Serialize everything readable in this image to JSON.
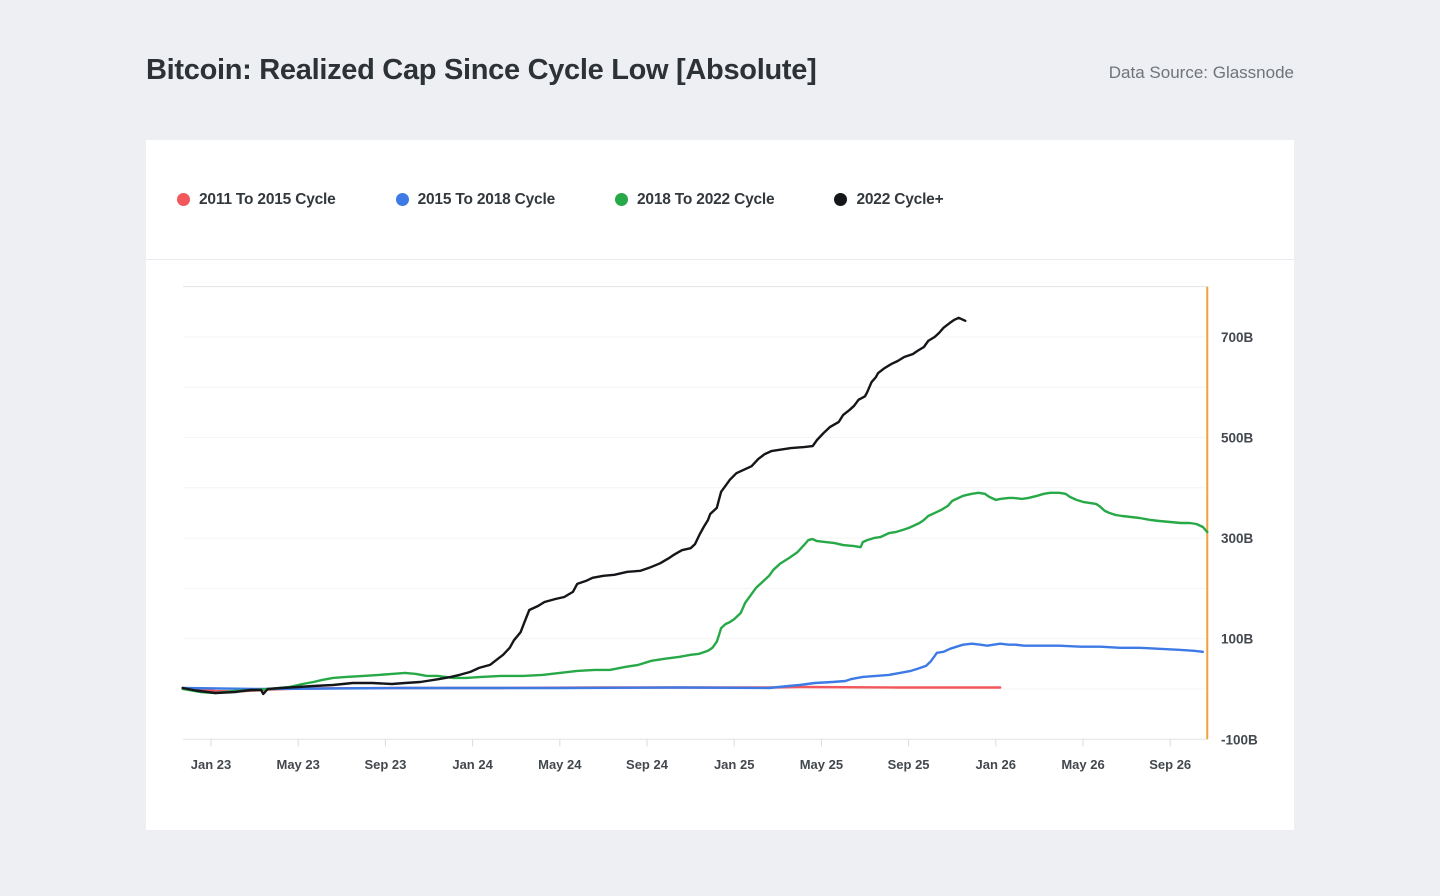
{
  "header": {
    "title": "Bitcoin: Realized Cap Since Cycle Low [Absolute]",
    "data_source": "Data Source: Glassnode"
  },
  "legend": [
    {
      "label": "2011 To 2015 Cycle",
      "color": "#F2575C"
    },
    {
      "label": "2015 To 2018 Cycle",
      "color": "#3D7AE5"
    },
    {
      "label": "2018 To 2022 Cycle",
      "color": "#27A948"
    },
    {
      "label": "2022 Cycle+",
      "color": "#141619"
    }
  ],
  "chart_data": {
    "type": "line",
    "title": "Bitcoin: Realized Cap Since Cycle Low [Absolute]",
    "xlabel": "",
    "ylabel": "",
    "unit": "billions USD",
    "grid": "horizontal",
    "legend_position": "top",
    "ylim": [
      -100,
      800
    ],
    "gridline_step": 100,
    "x_axis": {
      "note": "month 0 = Jan 23, 1 unit = 1 month",
      "ticks": [
        {
          "month": 0,
          "label": "Jan 23"
        },
        {
          "month": 4,
          "label": "May 23"
        },
        {
          "month": 8,
          "label": "Sep 23"
        },
        {
          "month": 12,
          "label": "Jan 24"
        },
        {
          "month": 16,
          "label": "May 24"
        },
        {
          "month": 20,
          "label": "Sep 24"
        },
        {
          "month": 24,
          "label": "Jan 25"
        },
        {
          "month": 28,
          "label": "May 25"
        },
        {
          "month": 32,
          "label": "Sep 25"
        },
        {
          "month": 36,
          "label": "Jan 26"
        },
        {
          "month": 40,
          "label": "May 26"
        },
        {
          "month": 44,
          "label": "Sep 26"
        }
      ]
    },
    "y_axis": {
      "side": "right",
      "ticks": [
        {
          "value": 700,
          "label": "700B"
        },
        {
          "value": 500,
          "label": "500B"
        },
        {
          "value": 300,
          "label": "300B"
        },
        {
          "value": 100,
          "label": "100B"
        },
        {
          "value": -100,
          "label": "-100B"
        }
      ]
    },
    "annotations": {
      "vertical_line": {
        "month": 45.7,
        "color": "#F2A13D"
      }
    },
    "series": [
      {
        "name": "2011 To 2015 Cycle",
        "color": "#F2575C",
        "points": [
          [
            -1.3,
            2
          ],
          [
            0.2,
            -4
          ],
          [
            1.1,
            -5
          ],
          [
            2,
            -3
          ],
          [
            2.7,
            -1
          ],
          [
            4.1,
            1
          ],
          [
            8.7,
            2
          ],
          [
            13.3,
            2
          ],
          [
            17.8,
            3
          ],
          [
            22.4,
            3
          ],
          [
            25.6,
            3
          ],
          [
            27,
            4
          ],
          [
            31.6,
            3
          ],
          [
            33.9,
            3
          ],
          [
            36.2,
            3
          ]
        ]
      },
      {
        "name": "2015 To 2018 Cycle",
        "color": "#3D7AE5",
        "points": [
          [
            -1.3,
            2
          ],
          [
            2.2,
            0
          ],
          [
            8.7,
            2
          ],
          [
            16,
            2
          ],
          [
            21.5,
            3
          ],
          [
            25.6,
            2
          ],
          [
            26.5,
            6
          ],
          [
            27,
            8
          ],
          [
            27.7,
            12
          ],
          [
            28.5,
            14
          ],
          [
            29.1,
            16
          ],
          [
            29.4,
            20
          ],
          [
            29.9,
            24
          ],
          [
            30.5,
            26
          ],
          [
            31.1,
            28
          ],
          [
            31.6,
            32
          ],
          [
            32.1,
            36
          ],
          [
            32.4,
            40
          ],
          [
            32.8,
            46
          ],
          [
            33,
            54
          ],
          [
            33.2,
            66
          ],
          [
            33.3,
            72
          ],
          [
            33.6,
            74
          ],
          [
            33.9,
            80
          ],
          [
            34.2,
            84
          ],
          [
            34.5,
            88
          ],
          [
            34.9,
            90
          ],
          [
            35.3,
            88
          ],
          [
            35.6,
            86
          ],
          [
            35.9,
            88
          ],
          [
            36.2,
            90
          ],
          [
            36.6,
            88
          ],
          [
            36.9,
            88
          ],
          [
            37.3,
            86
          ],
          [
            38,
            86
          ],
          [
            38.9,
            86
          ],
          [
            39.9,
            84
          ],
          [
            40.8,
            84
          ],
          [
            41.7,
            82
          ],
          [
            42.6,
            82
          ],
          [
            43.5,
            80
          ],
          [
            44.4,
            78
          ],
          [
            45.1,
            76
          ],
          [
            45.5,
            74
          ]
        ]
      },
      {
        "name": "2018 To 2022 Cycle",
        "color": "#27A948",
        "points": [
          [
            -1.3,
            0
          ],
          [
            -0.5,
            -6
          ],
          [
            0.2,
            -8
          ],
          [
            1.1,
            -4
          ],
          [
            2,
            -2
          ],
          [
            2.7,
            0
          ],
          [
            3.6,
            4
          ],
          [
            4.2,
            10
          ],
          [
            4.7,
            14
          ],
          [
            5.1,
            18
          ],
          [
            5.6,
            22
          ],
          [
            6.2,
            24
          ],
          [
            7,
            26
          ],
          [
            7.7,
            28
          ],
          [
            8.3,
            30
          ],
          [
            8.9,
            32
          ],
          [
            9.4,
            30
          ],
          [
            9.9,
            26
          ],
          [
            10.4,
            26
          ],
          [
            11.1,
            22
          ],
          [
            11.7,
            22
          ],
          [
            12.4,
            24
          ],
          [
            13.3,
            26
          ],
          [
            14.3,
            26
          ],
          [
            15.2,
            28
          ],
          [
            16,
            32
          ],
          [
            16.8,
            36
          ],
          [
            17.6,
            38
          ],
          [
            18.3,
            38
          ],
          [
            19,
            44
          ],
          [
            19.6,
            48
          ],
          [
            20.2,
            56
          ],
          [
            20.8,
            60
          ],
          [
            21.5,
            64
          ],
          [
            22,
            68
          ],
          [
            22.4,
            70
          ],
          [
            22.8,
            76
          ],
          [
            23,
            82
          ],
          [
            23.2,
            94
          ],
          [
            23.3,
            107
          ],
          [
            23.4,
            121
          ],
          [
            23.6,
            129
          ],
          [
            23.8,
            133
          ],
          [
            24,
            139
          ],
          [
            24.3,
            151
          ],
          [
            24.5,
            171
          ],
          [
            24.8,
            189
          ],
          [
            25,
            201
          ],
          [
            25.3,
            213
          ],
          [
            25.6,
            225
          ],
          [
            25.8,
            237
          ],
          [
            26.1,
            249
          ],
          [
            26.5,
            260
          ],
          [
            26.9,
            272
          ],
          [
            27.2,
            286
          ],
          [
            27.4,
            296
          ],
          [
            27.6,
            298
          ],
          [
            27.8,
            294
          ],
          [
            28.2,
            292
          ],
          [
            28.6,
            290
          ],
          [
            29,
            286
          ],
          [
            29.5,
            284
          ],
          [
            29.8,
            282
          ],
          [
            29.9,
            292
          ],
          [
            30.1,
            296
          ],
          [
            30.4,
            300
          ],
          [
            30.7,
            302
          ],
          [
            31.1,
            310
          ],
          [
            31.4,
            312
          ],
          [
            31.7,
            316
          ],
          [
            32,
            320
          ],
          [
            32.2,
            324
          ],
          [
            32.5,
            330
          ],
          [
            32.7,
            336
          ],
          [
            32.9,
            344
          ],
          [
            33.2,
            350
          ],
          [
            33.5,
            356
          ],
          [
            33.8,
            364
          ],
          [
            34,
            374
          ],
          [
            34.3,
            380
          ],
          [
            34.5,
            384
          ],
          [
            34.9,
            388
          ],
          [
            35.2,
            390
          ],
          [
            35.5,
            388
          ],
          [
            35.7,
            382
          ],
          [
            36,
            376
          ],
          [
            36.2,
            378
          ],
          [
            36.6,
            380
          ],
          [
            36.8,
            380
          ],
          [
            37.2,
            378
          ],
          [
            37.5,
            380
          ],
          [
            37.9,
            384
          ],
          [
            38.2,
            388
          ],
          [
            38.5,
            390
          ],
          [
            38.9,
            390
          ],
          [
            39.2,
            388
          ],
          [
            39.4,
            382
          ],
          [
            39.7,
            376
          ],
          [
            40,
            372
          ],
          [
            40.3,
            370
          ],
          [
            40.6,
            368
          ],
          [
            40.8,
            362
          ],
          [
            41,
            354
          ],
          [
            41.2,
            350
          ],
          [
            41.5,
            346
          ],
          [
            41.8,
            344
          ],
          [
            42.2,
            342
          ],
          [
            42.6,
            340
          ],
          [
            43.1,
            336
          ],
          [
            43.5,
            334
          ],
          [
            44,
            332
          ],
          [
            44.5,
            330
          ],
          [
            44.9,
            330
          ],
          [
            45.2,
            328
          ],
          [
            45.5,
            322
          ],
          [
            45.7,
            312
          ]
        ]
      },
      {
        "name": "2022 Cycle+",
        "color": "#141619",
        "points": [
          [
            -1.3,
            2
          ],
          [
            -0.7,
            -3
          ],
          [
            0.2,
            -8
          ],
          [
            1.1,
            -6
          ],
          [
            1.8,
            -2
          ],
          [
            2.3,
            -2
          ],
          [
            2.4,
            -10
          ],
          [
            2.6,
            0
          ],
          [
            3.2,
            2
          ],
          [
            4,
            4
          ],
          [
            4.7,
            6
          ],
          [
            5.6,
            8
          ],
          [
            6.5,
            12
          ],
          [
            7.4,
            12
          ],
          [
            8.3,
            10
          ],
          [
            8.9,
            12
          ],
          [
            9.6,
            14
          ],
          [
            10.5,
            20
          ],
          [
            11,
            24
          ],
          [
            11.4,
            28
          ],
          [
            11.9,
            34
          ],
          [
            12.3,
            42
          ],
          [
            12.8,
            48
          ],
          [
            13.1,
            58
          ],
          [
            13.4,
            68
          ],
          [
            13.7,
            82
          ],
          [
            13.9,
            97
          ],
          [
            14.2,
            113
          ],
          [
            14.4,
            135
          ],
          [
            14.6,
            157
          ],
          [
            15,
            165
          ],
          [
            15.3,
            173
          ],
          [
            15.8,
            179
          ],
          [
            16.2,
            183
          ],
          [
            16.6,
            193
          ],
          [
            16.8,
            209
          ],
          [
            17.2,
            215
          ],
          [
            17.5,
            221
          ],
          [
            18,
            225
          ],
          [
            18.5,
            227
          ],
          [
            19.1,
            233
          ],
          [
            19.7,
            235
          ],
          [
            20.1,
            241
          ],
          [
            20.6,
            250
          ],
          [
            21,
            260
          ],
          [
            21.2,
            266
          ],
          [
            21.6,
            276
          ],
          [
            22,
            280
          ],
          [
            22.2,
            288
          ],
          [
            22.4,
            306
          ],
          [
            22.6,
            322
          ],
          [
            22.8,
            336
          ],
          [
            22.9,
            348
          ],
          [
            23.2,
            360
          ],
          [
            23.3,
            376
          ],
          [
            23.4,
            392
          ],
          [
            23.6,
            404
          ],
          [
            23.8,
            416
          ],
          [
            24.1,
            429
          ],
          [
            24.4,
            435
          ],
          [
            24.8,
            443
          ],
          [
            25.1,
            457
          ],
          [
            25.4,
            467
          ],
          [
            25.7,
            473
          ],
          [
            26,
            475
          ],
          [
            26.6,
            479
          ],
          [
            27.2,
            481
          ],
          [
            27.6,
            483
          ],
          [
            27.8,
            495
          ],
          [
            28.1,
            509
          ],
          [
            28.4,
            521
          ],
          [
            28.8,
            531
          ],
          [
            29,
            545
          ],
          [
            29.3,
            555
          ],
          [
            29.5,
            563
          ],
          [
            29.7,
            575
          ],
          [
            30,
            582
          ],
          [
            30.1,
            590
          ],
          [
            30.3,
            610
          ],
          [
            30.5,
            620
          ],
          [
            30.6,
            628
          ],
          [
            30.9,
            638
          ],
          [
            31.2,
            646
          ],
          [
            31.5,
            652
          ],
          [
            31.8,
            660
          ],
          [
            32.2,
            666
          ],
          [
            32.4,
            672
          ],
          [
            32.7,
            680
          ],
          [
            32.9,
            692
          ],
          [
            33.2,
            700
          ],
          [
            33.4,
            708
          ],
          [
            33.6,
            718
          ],
          [
            33.9,
            728
          ],
          [
            34.1,
            734
          ],
          [
            34.3,
            738
          ],
          [
            34.4,
            736
          ],
          [
            34.6,
            732
          ]
        ]
      }
    ]
  }
}
